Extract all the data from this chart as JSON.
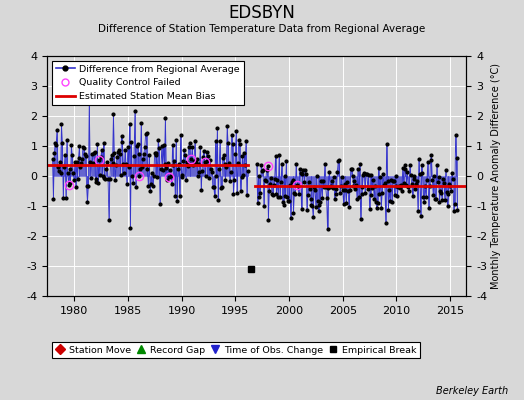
{
  "title": "EDSBYN",
  "subtitle": "Difference of Station Temperature Data from Regional Average",
  "ylabel": "Monthly Temperature Anomaly Difference (°C)",
  "xlabel_years": [
    1980,
    1985,
    1990,
    1995,
    2000,
    2005,
    2010,
    2015
  ],
  "ylim": [
    -4,
    4
  ],
  "xlim": [
    1977.5,
    2016.5
  ],
  "background_color": "#d8d8d8",
  "plot_bg_color": "#d8d8d8",
  "line_color": "#3333cc",
  "marker_color": "#000000",
  "bias_color": "#dd0000",
  "qc_edge_color": "#ff44ff",
  "station_move_color": "#cc0000",
  "record_gap_color": "#008800",
  "tobs_color": "#2222cc",
  "empirical_color": "#000000",
  "bias1_start": 1977.5,
  "bias1_end": 1996.2,
  "bias1_value": 0.38,
  "bias2_start": 1996.8,
  "bias2_end": 2016.5,
  "bias2_value": -0.32,
  "break_year": 1996.5,
  "break_marker_x": 1996.5,
  "break_marker_y": -3.1,
  "seed": 17,
  "gap_start": 1996.3,
  "gap_end": 1996.8
}
